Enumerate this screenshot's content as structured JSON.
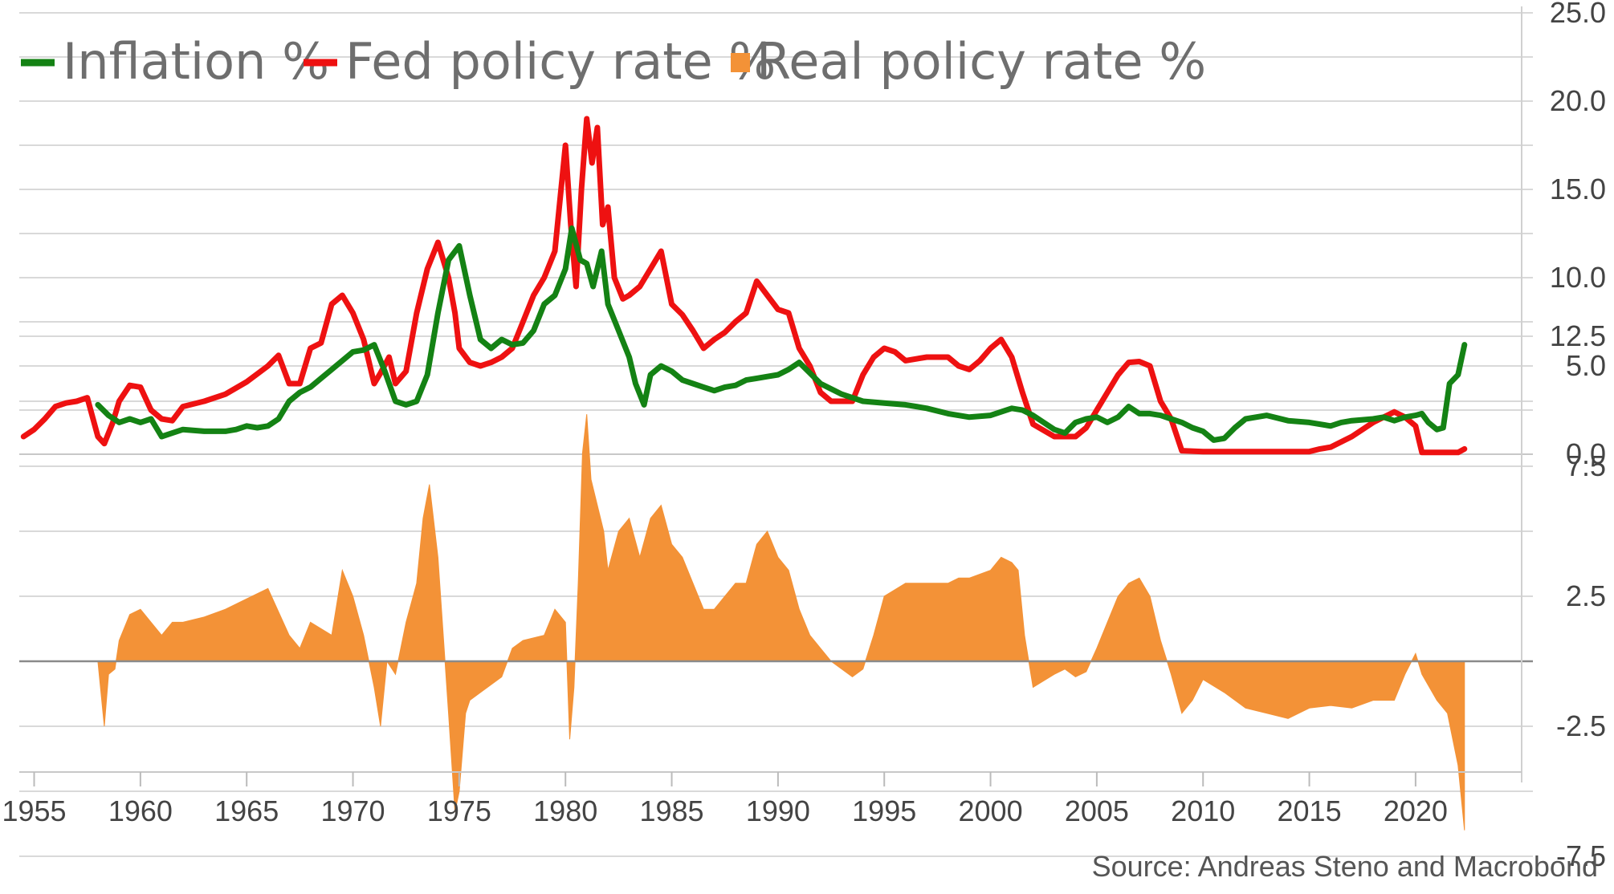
{
  "chart_data": {
    "type": "line",
    "source": "Source: Andreas Steno and Macrobond",
    "legend": {
      "placement": "top-left",
      "entries": [
        {
          "label": "Inflation %",
          "color": "#148214",
          "marker": "line"
        },
        {
          "label": "Fed policy rate %",
          "color": "#ee1111",
          "marker": "line"
        },
        {
          "label": "Real policy rate %",
          "color": "#f39237",
          "marker": "square"
        }
      ]
    },
    "x_axis": {
      "range": [
        1954.3,
        2024.5
      ],
      "tick_labels": [
        "1955",
        "1960",
        "1965",
        "1970",
        "1975",
        "1980",
        "1985",
        "1990",
        "1995",
        "2000",
        "2005",
        "2010",
        "2015",
        "2020"
      ]
    },
    "top_panel": {
      "y_range": [
        0,
        25
      ],
      "tick_labels": [
        "25.0",
        "20.0",
        "15.0",
        "10.0",
        "5.0",
        "0.0"
      ],
      "grid": true,
      "series": [
        {
          "name": "Fed policy rate %",
          "color": "#ee1111",
          "x": [
            1954.5,
            1955,
            1955.5,
            1956,
            1956.5,
            1957,
            1957.5,
            1958,
            1958.3,
            1958.7,
            1959,
            1959.5,
            1960,
            1960.5,
            1961,
            1961.5,
            1962,
            1963,
            1964,
            1965,
            1966,
            1966.5,
            1967,
            1967.5,
            1968,
            1968.5,
            1969,
            1969.5,
            1970,
            1970.5,
            1971,
            1971.3,
            1971.7,
            1972,
            1972.5,
            1973,
            1973.5,
            1974,
            1974.5,
            1974.8,
            1975,
            1975.5,
            1976,
            1976.5,
            1977,
            1977.5,
            1978,
            1978.5,
            1979,
            1979.5,
            1980,
            1980.25,
            1980.5,
            1980.75,
            1981,
            1981.25,
            1981.5,
            1981.75,
            1982,
            1982.3,
            1982.7,
            1983,
            1983.5,
            1984,
            1984.5,
            1985,
            1985.5,
            1986,
            1986.5,
            1987,
            1987.5,
            1988,
            1988.5,
            1989,
            1989.5,
            1990,
            1990.5,
            1991,
            1991.5,
            1992,
            1992.5,
            1993,
            1993.5,
            1994,
            1994.5,
            1995,
            1995.5,
            1996,
            1997,
            1998,
            1998.5,
            1999,
            1999.5,
            2000,
            2000.5,
            2001,
            2001.5,
            2002,
            2003,
            2003.5,
            2004,
            2004.5,
            2005,
            2005.5,
            2006,
            2006.5,
            2007,
            2007.5,
            2008,
            2008.5,
            2009,
            2010,
            2015,
            2015.5,
            2016,
            2017,
            2018,
            2019,
            2019.5,
            2020,
            2020.3,
            2021,
            2022,
            2022.3
          ],
          "values": [
            1.0,
            1.4,
            2.0,
            2.7,
            2.9,
            3.0,
            3.2,
            1.0,
            0.6,
            1.8,
            3.0,
            3.9,
            3.8,
            2.5,
            2.0,
            1.9,
            2.7,
            3.0,
            3.4,
            4.1,
            5.0,
            5.6,
            4.0,
            4.0,
            6.0,
            6.3,
            8.5,
            9.0,
            8.0,
            6.5,
            4.0,
            4.6,
            5.5,
            4.0,
            4.7,
            8.0,
            10.5,
            12.0,
            10.0,
            8.0,
            6.0,
            5.2,
            5.0,
            5.2,
            5.5,
            6.0,
            7.5,
            9.0,
            10.0,
            11.5,
            17.5,
            13.0,
            9.5,
            15.0,
            19.0,
            16.5,
            18.5,
            13.0,
            14.0,
            10.0,
            8.8,
            9.0,
            9.5,
            10.5,
            11.5,
            8.5,
            7.9,
            7.0,
            6.0,
            6.5,
            6.9,
            7.5,
            8.0,
            9.8,
            9.0,
            8.2,
            8.0,
            6.0,
            5.0,
            3.5,
            3.0,
            3.0,
            3.0,
            4.5,
            5.5,
            6.0,
            5.8,
            5.3,
            5.5,
            5.5,
            5.0,
            4.8,
            5.3,
            6.0,
            6.5,
            5.5,
            3.5,
            1.7,
            1.0,
            1.0,
            1.0,
            1.5,
            2.5,
            3.5,
            4.5,
            5.2,
            5.25,
            5.0,
            3.0,
            2.0,
            0.2,
            0.15,
            0.15,
            0.3,
            0.4,
            1.0,
            1.8,
            2.4,
            2.1,
            1.6,
            0.1,
            0.1,
            0.1,
            0.3
          ]
        },
        {
          "name": "Inflation %",
          "color": "#148214",
          "x": [
            1958,
            1958.5,
            1959,
            1959.5,
            1960,
            1960.5,
            1961,
            1961.5,
            1962,
            1963,
            1964,
            1964.5,
            1965,
            1965.5,
            1966,
            1966.5,
            1967,
            1967.5,
            1968,
            1968.5,
            1969,
            1969.5,
            1970,
            1970.5,
            1971,
            1971.5,
            1972,
            1972.5,
            1973,
            1973.5,
            1974,
            1974.5,
            1975,
            1975.5,
            1976,
            1976.5,
            1977,
            1977.5,
            1978,
            1978.5,
            1979,
            1979.5,
            1980,
            1980.3,
            1980.7,
            1981,
            1981.3,
            1981.7,
            1982,
            1982.5,
            1983,
            1983.3,
            1983.7,
            1984,
            1984.5,
            1985,
            1985.5,
            1986,
            1986.5,
            1987,
            1987.5,
            1988,
            1988.5,
            1989,
            1989.5,
            1990,
            1990.5,
            1991,
            1991.5,
            1992,
            1993,
            1994,
            1995,
            1996,
            1997,
            1998,
            1999,
            2000,
            2000.5,
            2001,
            2001.5,
            2002,
            2002.5,
            2003,
            2003.5,
            2004,
            2004.5,
            2005,
            2005.5,
            2006,
            2006.5,
            2007,
            2007.5,
            2008,
            2008.5,
            2009,
            2009.5,
            2010,
            2010.5,
            2011,
            2011.5,
            2012,
            2013,
            2014,
            2015,
            2016,
            2016.5,
            2017,
            2018,
            2018.5,
            2019,
            2019.5,
            2020,
            2020.3,
            2020.6,
            2021,
            2021.3,
            2021.6,
            2022,
            2022.3
          ],
          "values": [
            2.8,
            2.2,
            1.8,
            2.0,
            1.8,
            2.0,
            1.0,
            1.2,
            1.4,
            1.3,
            1.3,
            1.4,
            1.6,
            1.5,
            1.6,
            2.0,
            3.0,
            3.5,
            3.8,
            4.3,
            4.8,
            5.3,
            5.8,
            5.9,
            6.2,
            4.7,
            3.0,
            2.8,
            3.0,
            4.5,
            8.0,
            11.0,
            11.8,
            9.0,
            6.5,
            6.0,
            6.5,
            6.2,
            6.3,
            7.0,
            8.5,
            9.0,
            10.5,
            12.8,
            11.0,
            10.8,
            9.5,
            11.5,
            8.5,
            7.0,
            5.5,
            4.0,
            2.8,
            4.5,
            5.0,
            4.7,
            4.2,
            4.0,
            3.8,
            3.6,
            3.8,
            3.9,
            4.2,
            4.3,
            4.4,
            4.5,
            4.8,
            5.2,
            4.6,
            4.0,
            3.4,
            3.0,
            2.9,
            2.8,
            2.6,
            2.3,
            2.1,
            2.2,
            2.4,
            2.6,
            2.5,
            2.2,
            1.8,
            1.4,
            1.2,
            1.8,
            2.0,
            2.1,
            1.8,
            2.1,
            2.7,
            2.3,
            2.3,
            2.2,
            2.0,
            1.8,
            1.5,
            1.3,
            0.8,
            0.9,
            1.5,
            2.0,
            2.2,
            1.9,
            1.8,
            1.6,
            1.8,
            1.9,
            2.0,
            2.1,
            1.9,
            2.1,
            2.2,
            2.3,
            1.8,
            1.4,
            1.5,
            4.0,
            4.5,
            6.2
          ]
        }
      ]
    },
    "bottom_panel": {
      "y_range": [
        -8,
        13
      ],
      "tick_labels": [
        "12.5",
        "7.5",
        "2.5",
        "-2.5",
        "-7.5"
      ],
      "zero_line": true,
      "grid": true,
      "series": [
        {
          "name": "Real policy rate %",
          "color": "#f39237",
          "type": "area",
          "x": [
            1958,
            1958.3,
            1958.5,
            1958.8,
            1959,
            1959.5,
            1960,
            1960.5,
            1961,
            1961.5,
            1962,
            1963,
            1964,
            1965,
            1966,
            1967,
            1967.5,
            1968,
            1969,
            1969.5,
            1970,
            1970.5,
            1971,
            1971.3,
            1971.6,
            1972,
            1972.5,
            1973,
            1973.3,
            1973.6,
            1974,
            1974.5,
            1974.8,
            1975,
            1975.3,
            1975.5,
            1976,
            1977,
            1977.5,
            1978,
            1979,
            1979.5,
            1980,
            1980.2,
            1980.4,
            1980.6,
            1980.8,
            1981,
            1981.2,
            1981.5,
            1981.8,
            1982,
            1982.5,
            1983,
            1983.5,
            1984,
            1984.5,
            1985,
            1985.5,
            1986,
            1986.5,
            1987,
            1987.5,
            1988,
            1988.5,
            1989,
            1989.5,
            1990,
            1990.5,
            1991,
            1991.5,
            1992,
            1992.5,
            1993,
            1993.5,
            1994,
            1994.5,
            1995,
            1996,
            1997,
            1998,
            1998.5,
            1999,
            2000,
            2000.5,
            2001,
            2001.3,
            2001.6,
            2002,
            2003,
            2003.5,
            2004,
            2004.5,
            2005,
            2005.5,
            2006,
            2006.5,
            2007,
            2007.5,
            2008,
            2008.5,
            2009,
            2009.5,
            2010,
            2011,
            2012,
            2013,
            2014,
            2015,
            2016,
            2017,
            2018,
            2019,
            2019.5,
            2020,
            2020.3,
            2021,
            2021.5,
            2022,
            2022.3
          ],
          "values": [
            0,
            -2.5,
            -0.5,
            -0.3,
            0.8,
            1.8,
            2.0,
            1.5,
            1.0,
            1.5,
            1.5,
            1.7,
            2.0,
            2.4,
            2.8,
            1.0,
            0.5,
            1.5,
            1.0,
            3.5,
            2.5,
            1.0,
            -1.0,
            -2.5,
            0.0,
            -0.5,
            1.5,
            3.0,
            5.5,
            6.8,
            4.0,
            -2.0,
            -5.8,
            -5.0,
            -2.0,
            -1.5,
            -1.2,
            -0.6,
            0.5,
            0.8,
            1.0,
            2.0,
            1.5,
            -3.0,
            -1.0,
            3.0,
            8.0,
            9.5,
            7.0,
            6.0,
            5.0,
            3.5,
            5.0,
            5.5,
            4.0,
            5.5,
            6.0,
            4.5,
            4.0,
            3.0,
            2.0,
            2.0,
            2.5,
            3.0,
            3.0,
            4.5,
            5.0,
            4.0,
            3.5,
            2.0,
            1.0,
            0.5,
            0,
            -0.3,
            -0.6,
            -0.3,
            1.0,
            2.5,
            3.0,
            3.0,
            3.0,
            3.2,
            3.2,
            3.5,
            4.0,
            3.8,
            3.5,
            1.0,
            -1.0,
            -0.5,
            -0.3,
            -0.6,
            -0.4,
            0.5,
            1.5,
            2.5,
            3.0,
            3.2,
            2.5,
            0.8,
            -0.5,
            -2.0,
            -1.5,
            -0.7,
            -1.2,
            -1.8,
            -2.0,
            -2.2,
            -1.8,
            -1.7,
            -1.8,
            -1.5,
            -1.5,
            -0.5,
            0.3,
            -0.5,
            -1.5,
            -2.0,
            -4.0,
            -6.5
          ]
        }
      ]
    }
  }
}
